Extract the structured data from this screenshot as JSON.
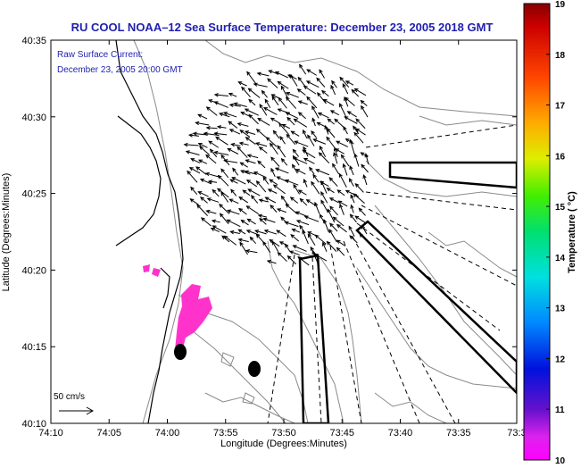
{
  "title": "RU COOL   NOAA–12  Sea Surface Temperature:  December 23, 2005 2018 GMT",
  "overlay": {
    "line1": "Raw Surface Current:",
    "line2": "December 23, 2005 20:00 GMT"
  },
  "axes": {
    "xlabel": "Longitude (Degrees:Minutes)",
    "ylabel": "Latitude (Degrees:Minutes)",
    "xticks": [
      "74:10",
      "74:05",
      "74:00",
      "73:55",
      "73:50",
      "73:45",
      "73:40",
      "73:35",
      "73:3"
    ],
    "yticks": [
      "40:35",
      "40:30",
      "40:25",
      "40:20",
      "40:15",
      "40:10"
    ]
  },
  "scale_label": "50 cm/s",
  "colorbar": {
    "label": "Temperature ( °C)",
    "ticks": [
      "19",
      "18",
      "17",
      "16",
      "15",
      "14",
      "13",
      "12",
      "11",
      "10"
    ]
  },
  "colors": {
    "title": "#1f1fb0",
    "hot": "#cc0000",
    "cold": "#ff33cc"
  }
}
